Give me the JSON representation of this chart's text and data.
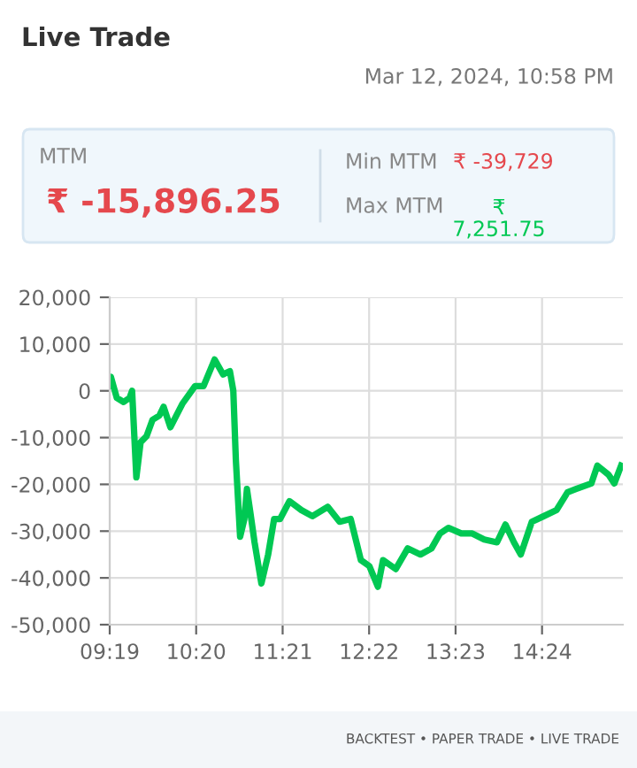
{
  "chart_data": {
    "type": "line",
    "title": "Live Trade",
    "annotations": [
      "Mar 12, 2024, 10:58 PM",
      "MTM",
      "₹ -15,896.25",
      "Min MTM",
      "₹ -39,729",
      "Max MTM",
      "₹\n7,251.75",
      "BACKTEST • PAPER TRADE • LIVE TRADE"
    ],
    "x": [
      9.32,
      9.33,
      9.4,
      9.48,
      9.55,
      9.58,
      9.63,
      9.68,
      9.75,
      9.82,
      9.9,
      9.95,
      10.03,
      10.17,
      10.32,
      10.42,
      10.55,
      10.65,
      10.73,
      10.77,
      10.8,
      10.85,
      10.9,
      10.93,
      10.97,
      11.02,
      11.1,
      11.18,
      11.25,
      11.32,
      11.43,
      11.57,
      11.7,
      11.88,
      12.02,
      12.15,
      12.27,
      12.37,
      12.47,
      12.53,
      12.68,
      12.82,
      12.97,
      13.1,
      13.2,
      13.3,
      13.45,
      13.58,
      13.72,
      13.87,
      13.97,
      14.07,
      14.15,
      14.28,
      14.42,
      14.57,
      14.7,
      14.8,
      14.98,
      15.05,
      15.18,
      15.25,
      15.33
    ],
    "series": [
      {
        "color": "#00c853",
        "values": [
          1000,
          3000,
          -1500,
          -2400,
          -1500,
          0,
          -18500,
          -11000,
          -9700,
          -6200,
          -5300,
          -3400,
          -7800,
          -2800,
          1000,
          1000,
          6700,
          3500,
          4200,
          0,
          -14800,
          -31200,
          -27400,
          -21000,
          -26000,
          -32400,
          -41200,
          -35000,
          -27400,
          -27400,
          -23600,
          -25500,
          -26800,
          -24800,
          -28000,
          -27400,
          -36200,
          -37500,
          -41900,
          -36200,
          -38100,
          -33700,
          -35000,
          -33700,
          -30500,
          -29300,
          -30500,
          -30500,
          -31800,
          -32400,
          -28600,
          -32400,
          -35000,
          -28000,
          -26800,
          -25500,
          -21700,
          -21000,
          -19800,
          -16000,
          -17900,
          -19800,
          -16000
        ]
      }
    ],
    "xlim": [
      9.3167,
      15.35
    ],
    "xticks": [
      {
        "value": 9.3167,
        "label": "09:19"
      },
      {
        "value": 10.3333,
        "label": "10:20"
      },
      {
        "value": 11.35,
        "label": "11:21"
      },
      {
        "value": 12.3667,
        "label": "12:22"
      },
      {
        "value": 13.3833,
        "label": "13:23"
      },
      {
        "value": 14.4,
        "label": "14:24"
      }
    ],
    "ylim": [
      -50000,
      20000
    ],
    "yticks": [
      {
        "value": -50000,
        "label": "-50,000"
      },
      {
        "value": -40000,
        "label": "-40,000"
      },
      {
        "value": -30000,
        "label": "-30,000"
      },
      {
        "value": -20000,
        "label": "-20,000"
      },
      {
        "value": -10000,
        "label": "-10,000"
      },
      {
        "value": 0,
        "label": "0"
      },
      {
        "value": 10000,
        "label": "10,000"
      },
      {
        "value": 20000,
        "label": "20,000"
      }
    ],
    "grid": true,
    "marker": "none",
    "line_style": "solid"
  }
}
